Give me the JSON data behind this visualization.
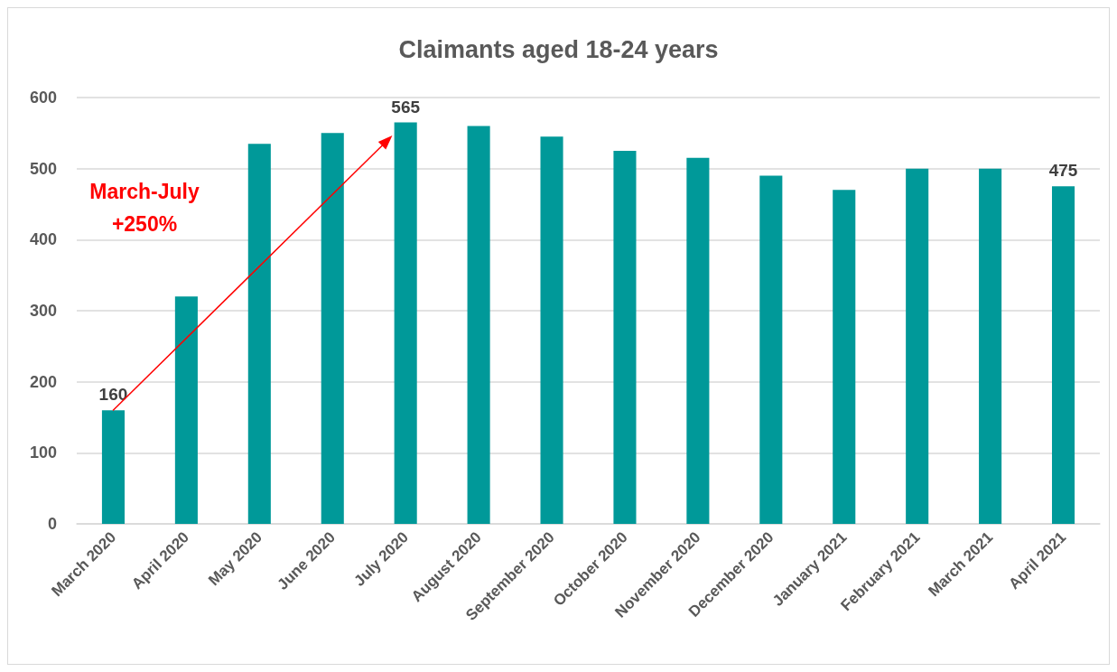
{
  "chart_data": {
    "type": "bar",
    "title": "Claimants aged 18-24 years",
    "categories": [
      "March 2020",
      "April 2020",
      "May 2020",
      "June 2020",
      "July 2020",
      "August 2020",
      "September 2020",
      "October 2020",
      "November 2020",
      "December 2020",
      "January 2021",
      "February 2021",
      "March 2021",
      "April 2021"
    ],
    "values": [
      160,
      320,
      535,
      550,
      565,
      560,
      545,
      525,
      515,
      490,
      470,
      500,
      500,
      475
    ],
    "color": "#009999",
    "ylim": [
      0,
      600
    ],
    "yticks": [
      0,
      100,
      200,
      300,
      400,
      500,
      600
    ],
    "grid": "y",
    "value_labels": [
      "160",
      null,
      null,
      null,
      "565",
      null,
      null,
      null,
      null,
      null,
      null,
      null,
      null,
      "475"
    ],
    "annotations": [
      "March-July\n+250%"
    ]
  }
}
